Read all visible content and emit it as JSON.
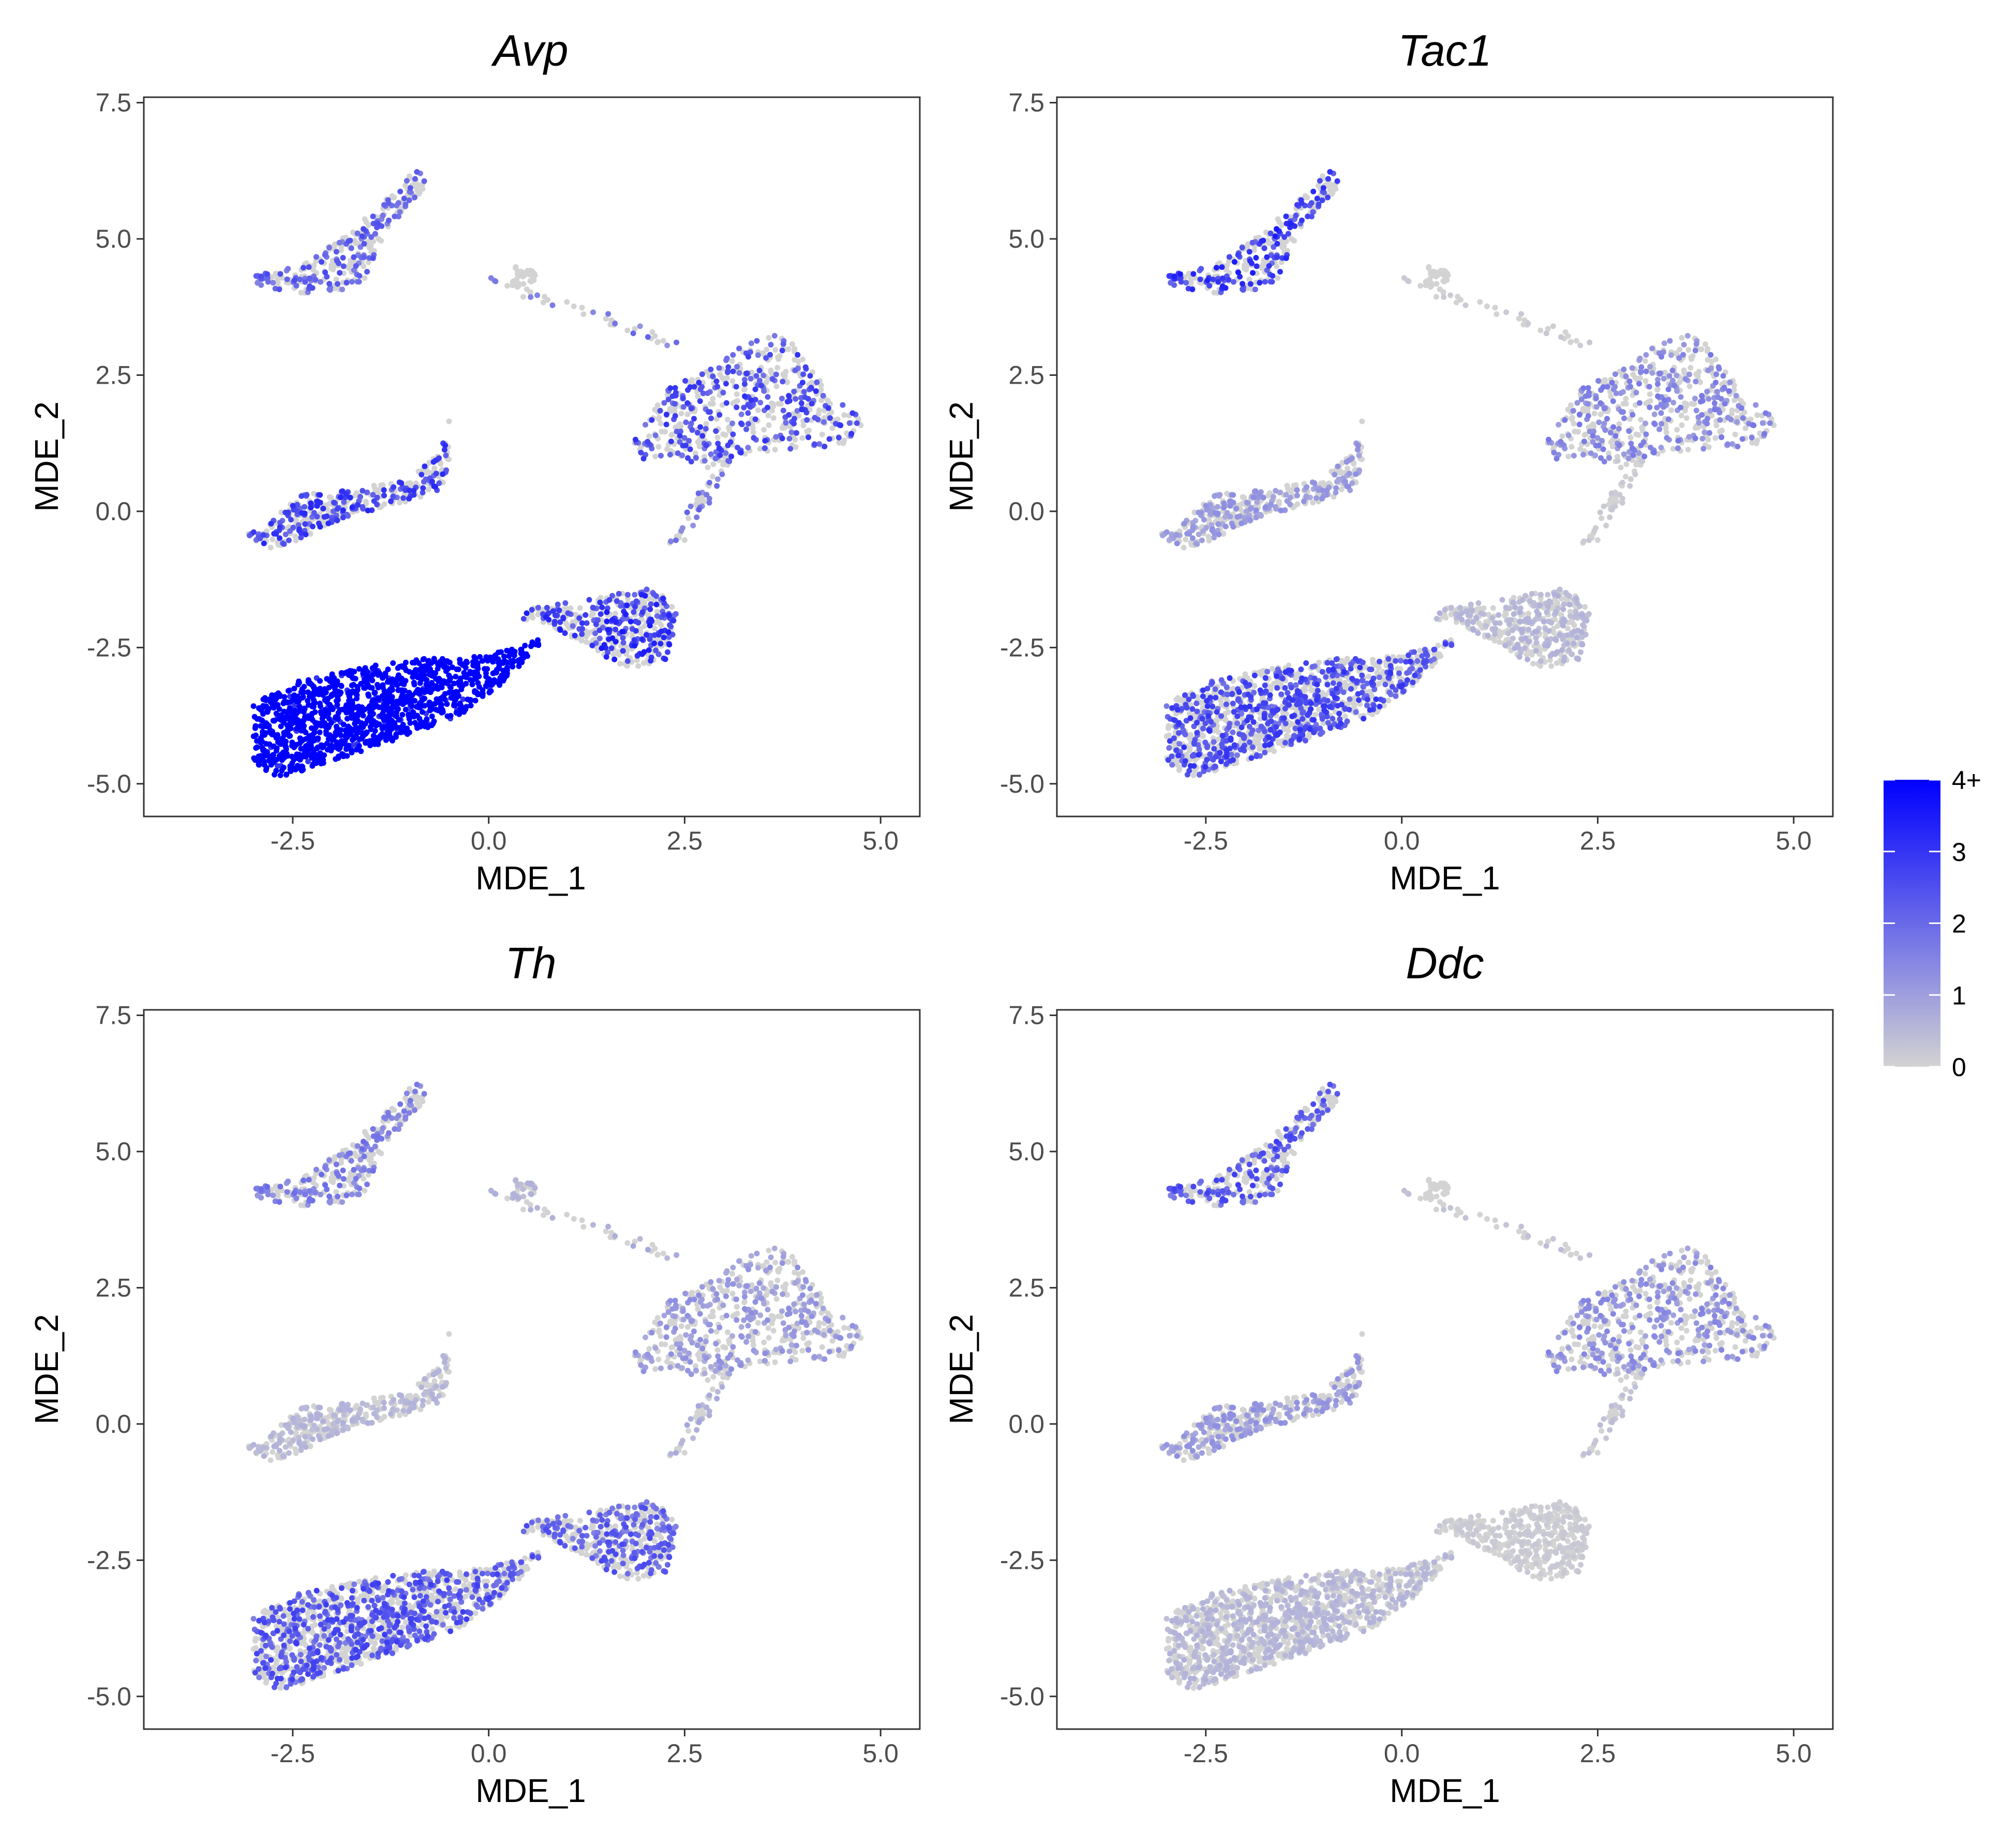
{
  "figure": {
    "colors": {
      "low": "#d3d3d3",
      "high": "#0000ff"
    }
  },
  "chart_data": [
    {
      "type": "scatter",
      "title": "Avp",
      "xlabel": "MDE_1",
      "ylabel": "MDE_2",
      "xlim": [
        -4.4,
        5.5
      ],
      "ylim": [
        -5.6,
        7.6
      ],
      "x_ticks": [
        -2.5,
        0.0,
        2.5,
        5.0
      ],
      "x_tick_labels": [
        "-2.5",
        "0.0",
        "2.5",
        "5.0"
      ],
      "y_ticks": [
        -5.0,
        -2.5,
        0.0,
        2.5,
        5.0,
        7.5
      ],
      "y_tick_labels": [
        "-5.0",
        "-2.5",
        "0.0",
        "2.5",
        "5.0",
        "7.5"
      ],
      "grid": false,
      "expression_by_cluster": {
        "top_left": 1.2,
        "isolated_top": 0.0,
        "right": 1.4,
        "middle_left": 1.5,
        "bottom_right": 1.6,
        "bottom_left": 4.0,
        "trail": 1.0
      }
    },
    {
      "type": "scatter",
      "title": "Tac1",
      "xlabel": "MDE_1",
      "ylabel": "MDE_2",
      "xlim": [
        -4.4,
        5.5
      ],
      "ylim": [
        -5.6,
        7.6
      ],
      "x_ticks": [
        -2.5,
        0.0,
        2.5,
        5.0
      ],
      "x_tick_labels": [
        "-2.5",
        "0.0",
        "2.5",
        "5.0"
      ],
      "y_ticks": [
        -5.0,
        -2.5,
        0.0,
        2.5,
        5.0,
        7.5
      ],
      "y_tick_labels": [
        "-5.0",
        "-2.5",
        "0.0",
        "2.5",
        "5.0",
        "7.5"
      ],
      "grid": false,
      "expression_by_cluster": {
        "top_left": 1.6,
        "isolated_top": 0.0,
        "right": 0.8,
        "middle_left": 0.6,
        "bottom_right": 0.3,
        "bottom_left": 1.4,
        "trail": 0.1
      }
    },
    {
      "type": "scatter",
      "title": "Th",
      "xlabel": "MDE_1",
      "ylabel": "MDE_2",
      "xlim": [
        -4.4,
        5.5
      ],
      "ylim": [
        -5.6,
        7.6
      ],
      "x_ticks": [
        -2.5,
        0.0,
        2.5,
        5.0
      ],
      "x_tick_labels": [
        "-2.5",
        "0.0",
        "2.5",
        "5.0"
      ],
      "y_ticks": [
        -5.0,
        -2.5,
        0.0,
        2.5,
        5.0,
        7.5
      ],
      "y_tick_labels": [
        "-5.0",
        "-2.5",
        "0.0",
        "2.5",
        "5.0",
        "7.5"
      ],
      "grid": false,
      "expression_by_cluster": {
        "top_left": 0.9,
        "isolated_top": 0.3,
        "right": 0.6,
        "middle_left": 0.3,
        "bottom_right": 1.2,
        "bottom_left": 1.3,
        "trail": 0.4
      }
    },
    {
      "type": "scatter",
      "title": "Ddc",
      "xlabel": "MDE_1",
      "ylabel": "MDE_2",
      "xlim": [
        -4.4,
        5.5
      ],
      "ylim": [
        -5.6,
        7.6
      ],
      "x_ticks": [
        -2.5,
        0.0,
        2.5,
        5.0
      ],
      "x_tick_labels": [
        "-2.5",
        "0.0",
        "2.5",
        "5.0"
      ],
      "y_ticks": [
        -5.0,
        -2.5,
        0.0,
        2.5,
        5.0,
        7.5
      ],
      "y_tick_labels": [
        "-5.0",
        "-2.5",
        "0.0",
        "2.5",
        "5.0",
        "7.5"
      ],
      "grid": false,
      "expression_by_cluster": {
        "top_left": 1.3,
        "isolated_top": 0.0,
        "right": 0.7,
        "middle_left": 0.6,
        "bottom_right": 0.1,
        "bottom_left": 0.3,
        "trail": 0.2
      }
    }
  ],
  "clusters": [
    {
      "id": "top_left",
      "polygon": [
        [
          -3.1,
          4.3
        ],
        [
          -2.4,
          4.5
        ],
        [
          -1.7,
          5.2
        ],
        [
          -1.2,
          5.9
        ],
        [
          -0.9,
          6.3
        ],
        [
          -0.8,
          6.0
        ],
        [
          -1.0,
          5.6
        ],
        [
          -1.3,
          5.2
        ],
        [
          -1.6,
          4.2
        ],
        [
          -2.0,
          4.0
        ],
        [
          -2.5,
          4.0
        ],
        [
          -3.1,
          4.2
        ]
      ],
      "count": 300
    },
    {
      "id": "isolated_top",
      "polygon": [
        [
          0.3,
          4.5
        ],
        [
          0.6,
          4.4
        ],
        [
          0.6,
          4.2
        ],
        [
          0.3,
          4.1
        ]
      ],
      "count": 30
    },
    {
      "id": "right",
      "polygon": [
        [
          1.8,
          1.2
        ],
        [
          2.3,
          2.3
        ],
        [
          2.8,
          2.6
        ],
        [
          3.3,
          3.1
        ],
        [
          3.8,
          3.3
        ],
        [
          4.0,
          2.8
        ],
        [
          4.3,
          2.3
        ],
        [
          4.6,
          1.9
        ],
        [
          4.8,
          1.6
        ],
        [
          4.5,
          1.2
        ],
        [
          3.6,
          1.1
        ],
        [
          2.7,
          0.9
        ],
        [
          2.0,
          0.9
        ]
      ],
      "count": 550
    },
    {
      "id": "middle_left",
      "polygon": [
        [
          -3.1,
          -0.4
        ],
        [
          -2.8,
          -0.2
        ],
        [
          -2.4,
          0.3
        ],
        [
          -1.8,
          0.4
        ],
        [
          -1.0,
          0.6
        ],
        [
          -0.6,
          1.2
        ],
        [
          -0.5,
          1.7
        ],
        [
          -0.5,
          0.9
        ],
        [
          -0.6,
          0.4
        ],
        [
          -1.0,
          0.2
        ],
        [
          -1.8,
          -0.1
        ],
        [
          -2.7,
          -0.7
        ],
        [
          -3.0,
          -0.6
        ]
      ],
      "count": 380
    },
    {
      "id": "bottom_right",
      "polygon": [
        [
          0.5,
          -1.8
        ],
        [
          1.3,
          -1.6
        ],
        [
          2.1,
          -1.4
        ],
        [
          2.4,
          -1.8
        ],
        [
          2.3,
          -2.7
        ],
        [
          1.8,
          -2.9
        ],
        [
          1.4,
          -2.6
        ],
        [
          0.8,
          -2.1
        ],
        [
          0.4,
          -2.0
        ]
      ],
      "count": 420
    },
    {
      "id": "bottom_left",
      "polygon": [
        [
          -3.0,
          -3.5
        ],
        [
          -2.4,
          -3.1
        ],
        [
          -1.7,
          -2.9
        ],
        [
          -1.0,
          -2.7
        ],
        [
          -0.3,
          -2.7
        ],
        [
          0.4,
          -2.5
        ],
        [
          0.8,
          -2.2
        ],
        [
          0.3,
          -3.0
        ],
        [
          -0.3,
          -3.7
        ],
        [
          -1.2,
          -4.2
        ],
        [
          -2.0,
          -4.6
        ],
        [
          -2.7,
          -4.9
        ],
        [
          -3.0,
          -4.6
        ]
      ],
      "count": 1250
    },
    {
      "id": "trail",
      "polygon": [
        [
          0.0,
          4.3
        ],
        [
          1.6,
          3.6
        ],
        [
          2.6,
          3.0
        ],
        [
          2.6,
          2.8
        ],
        [
          1.6,
          3.4
        ],
        [
          0.0,
          4.1
        ]
      ],
      "count": 40
    },
    {
      "id": "trail",
      "polygon": [
        [
          2.6,
          1.5
        ],
        [
          3.1,
          1.0
        ],
        [
          2.6,
          -0.5
        ],
        [
          2.3,
          -0.6
        ],
        [
          2.8,
          0.7
        ]
      ],
      "count": 60
    }
  ],
  "legend": {
    "tick_labels": [
      "4+",
      "3",
      "2",
      "1",
      "0"
    ],
    "tick_values": [
      4,
      3,
      2,
      1,
      0
    ]
  }
}
